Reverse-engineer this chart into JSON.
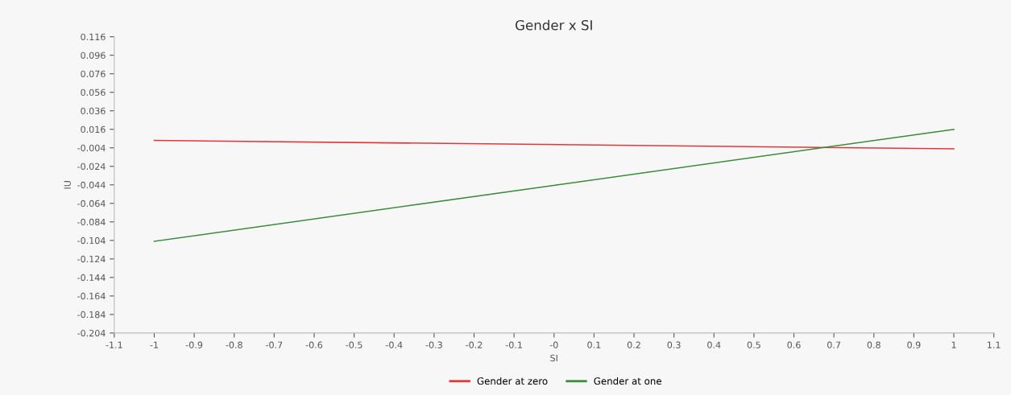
{
  "chart_data": {
    "type": "line",
    "title": "Gender x SI",
    "xlabel": "SI",
    "ylabel": "IU",
    "x": [
      -1,
      1
    ],
    "series": [
      {
        "name": "Gender at zero",
        "color": "#e0383a",
        "values": [
          0.004,
          -0.005
        ]
      },
      {
        "name": "Gender at one",
        "color": "#3c8a3c",
        "values": [
          -0.105,
          0.016
        ]
      }
    ],
    "xlim": [
      -1.1,
      1.1
    ],
    "xticks": [
      -1.1,
      -1,
      -0.9,
      -0.8,
      -0.7,
      -0.6,
      -0.5,
      -0.4,
      -0.3,
      -0.2,
      -0.1,
      {
        "value": 0,
        "label": "-0"
      },
      0.1,
      0.2,
      0.3,
      0.4,
      0.5,
      0.6,
      0.7,
      0.8,
      0.9,
      1,
      1.1
    ],
    "ylim": [
      -0.204,
      0.116
    ],
    "yticks": [
      0.116,
      0.096,
      0.076,
      0.056,
      0.036,
      0.016,
      -0.004,
      -0.024,
      -0.044,
      -0.064,
      -0.084,
      -0.104,
      -0.124,
      -0.144,
      -0.164,
      -0.184,
      -0.204
    ],
    "grid": false,
    "legend": "bottom",
    "marker": "none",
    "line_style": "solid"
  }
}
